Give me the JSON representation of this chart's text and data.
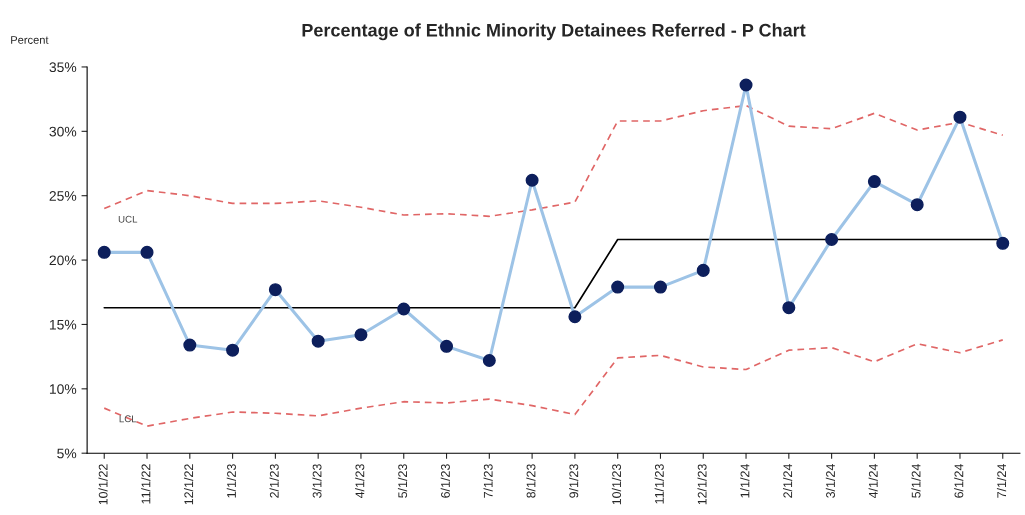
{
  "chart_data": {
    "type": "line",
    "title": "Percentage of Ethnic Minority Detainees Referred - P Chart",
    "ylabel": "Percent",
    "categories": [
      "10/1/22",
      "11/1/22",
      "12/1/22",
      "1/1/23",
      "2/1/23",
      "3/1/23",
      "4/1/23",
      "5/1/23",
      "6/1/23",
      "7/1/23",
      "8/1/23",
      "9/1/23",
      "10/1/23",
      "11/1/23",
      "12/1/23",
      "1/1/24",
      "2/1/24",
      "3/1/24",
      "4/1/24",
      "5/1/24",
      "6/1/24",
      "7/1/24"
    ],
    "series": [
      {
        "color": "#e06666",
        "line_style": "dashed",
        "marker": "none",
        "values": [
          24.0,
          25.4,
          25.0,
          24.4,
          24.4,
          24.6,
          24.1,
          23.5,
          23.6,
          23.4,
          23.9,
          24.5,
          30.8,
          30.8,
          31.6,
          32.0,
          30.4,
          30.2,
          31.4,
          30.1,
          30.7,
          29.7
        ]
      },
      {
        "color": "#e06666",
        "line_style": "dashed",
        "marker": "none",
        "values": [
          8.5,
          7.1,
          7.7,
          8.2,
          8.1,
          7.9,
          8.5,
          9.0,
          8.9,
          9.2,
          8.7,
          8.0,
          12.4,
          12.6,
          11.7,
          11.5,
          13.0,
          13.2,
          12.1,
          13.5,
          12.8,
          13.8
        ]
      },
      {
        "color": "#000000",
        "line_style": "solid",
        "marker": "none",
        "values": [
          16.3,
          16.3,
          16.3,
          16.3,
          16.3,
          16.3,
          16.3,
          16.3,
          16.3,
          16.3,
          16.3,
          16.3,
          21.6,
          21.6,
          21.6,
          21.6,
          21.6,
          21.6,
          21.6,
          21.6,
          21.6,
          21.6
        ]
      },
      {
        "color": "#9dc3e6",
        "line_style": "solid",
        "marker": "circle",
        "colors": [
          "#0d1f5c",
          "#0d1f5c",
          "#0d1f5c",
          "#0d1f5c",
          "#0d1f5c",
          "#0d1f5c",
          "#0d1f5c",
          "#0d1f5c",
          "#0d1f5c",
          "#0d1f5c",
          "#0d1f5c",
          "#0d1f5c",
          "#0d1f5c",
          "#0d1f5c",
          "#0d1f5c",
          "#0d1f5c",
          "#0d1f5c",
          "#0d1f5c",
          "#0d1f5c",
          "#0d1f5c",
          "#0d1f5c",
          "#0d1f5c"
        ],
        "values": [
          20.6,
          20.6,
          13.4,
          13.0,
          17.7,
          13.7,
          14.2,
          16.2,
          13.3,
          12.2,
          26.2,
          15.6,
          17.9,
          17.9,
          19.2,
          33.6,
          16.3,
          21.6,
          26.1,
          24.3,
          31.1,
          21.3
        ]
      }
    ],
    "annotations": [
      "UCL",
      "LCL"
    ],
    "ylim": [
      5,
      35
    ],
    "yticks": [
      {
        "value": 5,
        "label": "5%"
      },
      {
        "value": 10,
        "label": "10%"
      },
      {
        "value": 15,
        "label": "15%"
      },
      {
        "value": 20,
        "label": "20%"
      },
      {
        "value": 25,
        "label": "25%"
      },
      {
        "value": 30,
        "label": "30%"
      },
      {
        "value": 35,
        "label": "35%"
      }
    ],
    "grid": false,
    "legend": false
  }
}
